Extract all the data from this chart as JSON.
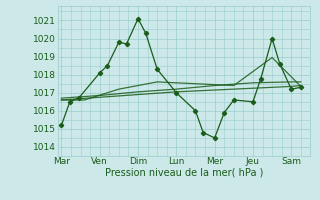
{
  "title": "",
  "xlabel": "Pression niveau de la mer( hPa )",
  "bg_color": "#cce8e8",
  "grid_color": "#99cccc",
  "line_color": "#1a5c1a",
  "ylim": [
    1013.5,
    1021.8
  ],
  "yticks": [
    1014,
    1015,
    1016,
    1017,
    1018,
    1019,
    1020,
    1021
  ],
  "day_labels": [
    "Mar",
    "Ven",
    "Dim",
    "Lun",
    "Mer",
    "Jeu",
    "Sam"
  ],
  "day_positions": [
    0,
    1,
    2,
    3,
    4,
    5,
    6
  ],
  "xlim": [
    -0.1,
    6.5
  ],
  "series": [
    [
      0.0,
      1015.2,
      0.22,
      1016.5,
      0.45,
      1016.7,
      1.0,
      1018.1,
      1.2,
      1018.5,
      1.5,
      1019.8,
      1.7,
      1019.7,
      2.0,
      1021.1,
      2.2,
      1020.3,
      2.5,
      1018.3,
      3.0,
      1017.0,
      3.5,
      1016.0,
      3.7,
      1014.8,
      4.0,
      1014.5,
      4.25,
      1015.9,
      4.5,
      1016.6,
      5.0,
      1016.5,
      5.2,
      1017.75,
      5.5,
      1020.0,
      5.7,
      1018.6,
      6.0,
      1017.2,
      6.25,
      1017.3
    ],
    [
      0.0,
      1016.6,
      0.6,
      1016.6,
      1.5,
      1017.2,
      2.5,
      1017.6,
      3.5,
      1017.5,
      4.5,
      1017.4,
      5.5,
      1018.95,
      6.25,
      1017.35
    ],
    [
      0.0,
      1016.6,
      1.0,
      1016.75,
      2.0,
      1016.9,
      3.0,
      1017.05,
      4.0,
      1017.15,
      5.0,
      1017.25,
      6.0,
      1017.35,
      6.25,
      1017.4
    ],
    [
      0.0,
      1016.7,
      1.0,
      1016.85,
      2.0,
      1017.05,
      3.0,
      1017.2,
      4.0,
      1017.4,
      5.0,
      1017.55,
      6.0,
      1017.6,
      6.25,
      1017.6
    ]
  ],
  "font_size_label": 7,
  "font_size_tick": 6.5,
  "marker": "D",
  "marker_size": 2.2,
  "line_width": 0.9
}
